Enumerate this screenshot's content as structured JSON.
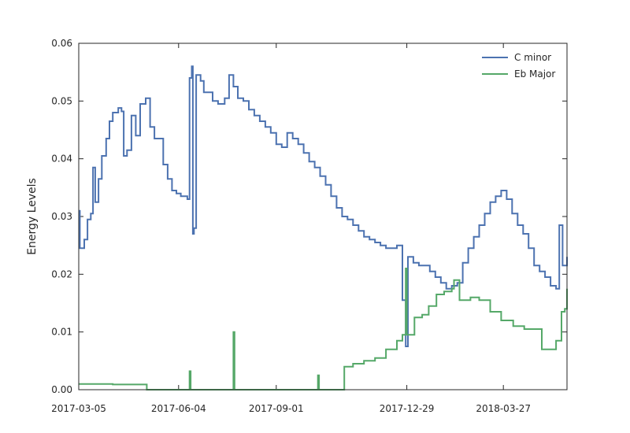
{
  "chart_data": {
    "type": "line",
    "title": "",
    "xlabel": "",
    "ylabel": "Energy Levels",
    "xlim": [
      "2017-03-05",
      "2018-05-24"
    ],
    "ylim": [
      0,
      0.06
    ],
    "grid": false,
    "legend_position": "top-right",
    "x_tick_labels": [
      "2017-03-05",
      "2017-06-04",
      "2017-09-01",
      "2017-12-29",
      "2018-03-27"
    ],
    "y_tick_labels": [
      "0.00",
      "0.01",
      "0.02",
      "0.03",
      "0.04",
      "0.05",
      "0.06"
    ],
    "x_tick_values": [
      "2017-03-05",
      "2017-06-04",
      "2017-09-01",
      "2017-12-29",
      "2018-03-27"
    ],
    "y_tick_values": [
      0,
      0.01,
      0.02,
      0.03,
      0.04,
      0.05,
      0.06
    ],
    "series": [
      {
        "name": "C minor",
        "color": "#4c72b0",
        "points": [
          [
            "2017-03-05",
            0.031
          ],
          [
            "2017-03-06",
            0.0245
          ],
          [
            "2017-03-10",
            0.026
          ],
          [
            "2017-03-13",
            0.0295
          ],
          [
            "2017-03-16",
            0.0305
          ],
          [
            "2017-03-18",
            0.0385
          ],
          [
            "2017-03-20",
            0.0325
          ],
          [
            "2017-03-23",
            0.0365
          ],
          [
            "2017-03-26",
            0.0405
          ],
          [
            "2017-03-30",
            0.0435
          ],
          [
            "2017-04-02",
            0.0465
          ],
          [
            "2017-04-05",
            0.048
          ],
          [
            "2017-04-10",
            0.0488
          ],
          [
            "2017-04-13",
            0.0482
          ],
          [
            "2017-04-15",
            0.0405
          ],
          [
            "2017-04-18",
            0.0415
          ],
          [
            "2017-04-22",
            0.0475
          ],
          [
            "2017-04-26",
            0.044
          ],
          [
            "2017-04-30",
            0.0495
          ],
          [
            "2017-05-05",
            0.0505
          ],
          [
            "2017-05-09",
            0.0455
          ],
          [
            "2017-05-13",
            0.0435
          ],
          [
            "2017-05-17",
            0.0435
          ],
          [
            "2017-05-21",
            0.039
          ],
          [
            "2017-05-25",
            0.0365
          ],
          [
            "2017-05-29",
            0.0345
          ],
          [
            "2017-06-02",
            0.034
          ],
          [
            "2017-06-06",
            0.0335
          ],
          [
            "2017-06-12",
            0.033
          ],
          [
            "2017-06-14",
            0.054
          ],
          [
            "2017-06-16",
            0.056
          ],
          [
            "2017-06-17",
            0.027
          ],
          [
            "2017-06-18",
            0.028
          ],
          [
            "2017-06-20",
            0.0545
          ],
          [
            "2017-06-24",
            0.0535
          ],
          [
            "2017-06-27",
            0.0515
          ],
          [
            "2017-06-30",
            0.0515
          ],
          [
            "2017-07-05",
            0.05
          ],
          [
            "2017-07-10",
            0.0495
          ],
          [
            "2017-07-16",
            0.0505
          ],
          [
            "2017-07-20",
            0.0545
          ],
          [
            "2017-07-24",
            0.0525
          ],
          [
            "2017-07-28",
            0.0505
          ],
          [
            "2017-08-02",
            0.05
          ],
          [
            "2017-08-07",
            0.0485
          ],
          [
            "2017-08-12",
            0.0475
          ],
          [
            "2017-08-17",
            0.0465
          ],
          [
            "2017-08-22",
            0.0455
          ],
          [
            "2017-08-27",
            0.0445
          ],
          [
            "2017-09-01",
            0.0425
          ],
          [
            "2017-09-06",
            0.042
          ],
          [
            "2017-09-11",
            0.0445
          ],
          [
            "2017-09-16",
            0.0435
          ],
          [
            "2017-09-21",
            0.0425
          ],
          [
            "2017-09-26",
            0.041
          ],
          [
            "2017-10-01",
            0.0395
          ],
          [
            "2017-10-06",
            0.0385
          ],
          [
            "2017-10-11",
            0.037
          ],
          [
            "2017-10-16",
            0.0355
          ],
          [
            "2017-10-21",
            0.0335
          ],
          [
            "2017-10-26",
            0.0315
          ],
          [
            "2017-10-31",
            0.03
          ],
          [
            "2017-11-05",
            0.0295
          ],
          [
            "2017-11-10",
            0.0285
          ],
          [
            "2017-11-15",
            0.0275
          ],
          [
            "2017-11-20",
            0.0265
          ],
          [
            "2017-11-25",
            0.026
          ],
          [
            "2017-11-30",
            0.0255
          ],
          [
            "2017-12-05",
            0.025
          ],
          [
            "2017-12-10",
            0.0245
          ],
          [
            "2017-12-15",
            0.0245
          ],
          [
            "2017-12-20",
            0.025
          ],
          [
            "2017-12-25",
            0.0155
          ],
          [
            "2017-12-28",
            0.0075
          ],
          [
            "2017-12-30",
            0.023
          ],
          [
            "2018-01-04",
            0.022
          ],
          [
            "2018-01-09",
            0.0215
          ],
          [
            "2018-01-14",
            0.0215
          ],
          [
            "2018-01-19",
            0.0205
          ],
          [
            "2018-01-24",
            0.0195
          ],
          [
            "2018-01-29",
            0.0185
          ],
          [
            "2018-02-03",
            0.0175
          ],
          [
            "2018-02-08",
            0.018
          ],
          [
            "2018-02-13",
            0.0185
          ],
          [
            "2018-02-18",
            0.022
          ],
          [
            "2018-02-23",
            0.0245
          ],
          [
            "2018-02-28",
            0.0265
          ],
          [
            "2018-03-05",
            0.0285
          ],
          [
            "2018-03-10",
            0.0305
          ],
          [
            "2018-03-15",
            0.0325
          ],
          [
            "2018-03-20",
            0.0335
          ],
          [
            "2018-03-25",
            0.0345
          ],
          [
            "2018-03-30",
            0.033
          ],
          [
            "2018-04-04",
            0.0305
          ],
          [
            "2018-04-09",
            0.0285
          ],
          [
            "2018-04-14",
            0.027
          ],
          [
            "2018-04-19",
            0.0245
          ],
          [
            "2018-04-24",
            0.0215
          ],
          [
            "2018-04-29",
            0.0205
          ],
          [
            "2018-05-04",
            0.0195
          ],
          [
            "2018-05-09",
            0.018
          ],
          [
            "2018-05-14",
            0.0175
          ],
          [
            "2018-05-17",
            0.0285
          ],
          [
            "2018-05-20",
            0.0215
          ],
          [
            "2018-05-24",
            0.023
          ]
        ]
      },
      {
        "name": "Eb Major",
        "color": "#55a868",
        "points": [
          [
            "2017-03-05",
            0.001
          ],
          [
            "2017-04-05",
            0.0009
          ],
          [
            "2017-05-06",
            0.0
          ],
          [
            "2017-06-13",
            0.0
          ],
          [
            "2017-06-14",
            0.0032
          ],
          [
            "2017-06-15",
            0.0
          ],
          [
            "2017-07-23",
            0.0
          ],
          [
            "2017-07-24",
            0.01
          ],
          [
            "2017-07-25",
            0.0
          ],
          [
            "2017-10-08",
            0.0
          ],
          [
            "2017-10-09",
            0.0025
          ],
          [
            "2017-10-10",
            0.0
          ],
          [
            "2017-11-01",
            0.0
          ],
          [
            "2017-11-02",
            0.004
          ],
          [
            "2017-11-10",
            0.0045
          ],
          [
            "2017-11-20",
            0.005
          ],
          [
            "2017-11-30",
            0.0055
          ],
          [
            "2017-12-10",
            0.007
          ],
          [
            "2017-12-20",
            0.0085
          ],
          [
            "2017-12-25",
            0.0095
          ],
          [
            "2017-12-28",
            0.021
          ],
          [
            "2017-12-29",
            0.0095
          ],
          [
            "2018-01-05",
            0.0125
          ],
          [
            "2018-01-12",
            0.013
          ],
          [
            "2018-01-18",
            0.0145
          ],
          [
            "2018-01-25",
            0.0165
          ],
          [
            "2018-02-01",
            0.017
          ],
          [
            "2018-02-08",
            0.0175
          ],
          [
            "2018-02-10",
            0.019
          ],
          [
            "2018-02-15",
            0.0155
          ],
          [
            "2018-02-25",
            0.016
          ],
          [
            "2018-03-05",
            0.0155
          ],
          [
            "2018-03-15",
            0.0135
          ],
          [
            "2018-03-25",
            0.012
          ],
          [
            "2018-04-05",
            0.011
          ],
          [
            "2018-04-15",
            0.0105
          ],
          [
            "2018-04-25",
            0.0105
          ],
          [
            "2018-05-01",
            0.007
          ],
          [
            "2018-05-08",
            0.007
          ],
          [
            "2018-05-14",
            0.0085
          ],
          [
            "2018-05-19",
            0.0135
          ],
          [
            "2018-05-22",
            0.014
          ],
          [
            "2018-05-24",
            0.0175
          ]
        ]
      }
    ]
  }
}
